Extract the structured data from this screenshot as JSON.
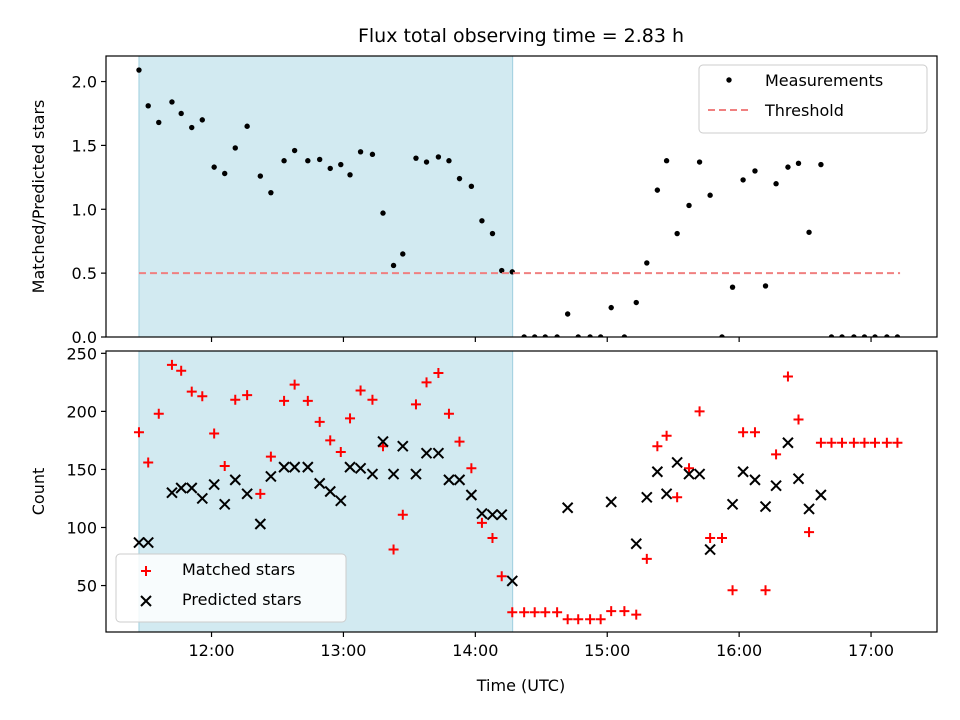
{
  "chart_data": {
    "title": "Flux total observing time = 2.83 h",
    "xlabel": "Time (UTC)",
    "x_ticks": [
      "12:00",
      "13:00",
      "14:00",
      "15:00",
      "16:00",
      "17:00"
    ],
    "x_tick_hours": [
      12,
      13,
      14,
      15,
      16,
      17
    ],
    "x_range_hours": [
      11.2,
      17.5
    ],
    "shaded_interval_hours": [
      11.45,
      14.283
    ],
    "colors": {
      "shade": "#add8e6",
      "threshold": "#f08080",
      "matched": "#ff0000",
      "predicted": "#000000",
      "measurement": "#000000"
    },
    "panels": [
      {
        "type": "scatter",
        "ylabel": "Matched/Predicted stars",
        "ylim": [
          0,
          2.2
        ],
        "y_ticks": [
          "0.0",
          "0.5",
          "1.0",
          "1.5",
          "2.0"
        ],
        "y_tick_values": [
          0,
          0.5,
          1.0,
          1.5,
          2.0
        ],
        "legend_position": "top-right",
        "series": [
          {
            "name": "Measurements",
            "marker": "dot",
            "x": [
              11.45,
              11.52,
              11.6,
              11.7,
              11.77,
              11.85,
              11.93,
              12.02,
              12.1,
              12.18,
              12.27,
              12.37,
              12.45,
              12.55,
              12.63,
              12.73,
              12.82,
              12.9,
              12.98,
              13.05,
              13.13,
              13.22,
              13.3,
              13.38,
              13.45,
              13.55,
              13.63,
              13.72,
              13.8,
              13.88,
              13.97,
              14.05,
              14.13,
              14.2,
              14.28,
              14.37,
              14.45,
              14.53,
              14.62,
              14.7,
              14.78,
              14.87,
              14.95,
              15.03,
              15.13,
              15.22,
              15.3,
              15.38,
              15.45,
              15.53,
              15.62,
              15.7,
              15.78,
              15.87,
              15.95,
              16.03,
              16.12,
              16.2,
              16.28,
              16.37,
              16.45,
              16.53,
              16.62,
              16.7,
              16.78,
              16.87,
              16.95,
              17.03,
              17.12,
              17.2
            ],
            "y": [
              2.09,
              1.81,
              1.68,
              1.84,
              1.75,
              1.64,
              1.7,
              1.33,
              1.28,
              1.48,
              1.65,
              1.26,
              1.13,
              1.38,
              1.46,
              1.38,
              1.39,
              1.32,
              1.35,
              1.27,
              1.45,
              1.43,
              0.97,
              0.56,
              0.65,
              1.4,
              1.37,
              1.41,
              1.38,
              1.24,
              1.18,
              0.91,
              0.81,
              0.52,
              0.51,
              0.0,
              0.0,
              0.0,
              0.0,
              0.18,
              0.0,
              0.0,
              0.0,
              0.23,
              0.0,
              0.27,
              0.58,
              1.15,
              1.38,
              0.81,
              1.03,
              1.37,
              1.11,
              0.0,
              0.39,
              1.23,
              1.3,
              0.4,
              1.2,
              1.33,
              1.36,
              0.82,
              1.35,
              0.0,
              0.0,
              0.0,
              0.0,
              0.0,
              0.0,
              0.0
            ]
          },
          {
            "name": "Threshold",
            "marker": "dashed-line",
            "x": [
              11.45,
              17.22
            ],
            "y": [
              0.5,
              0.5
            ]
          }
        ]
      },
      {
        "type": "scatter",
        "ylabel": "Count",
        "ylim": [
          10,
          252
        ],
        "y_ticks": [
          "50",
          "100",
          "150",
          "200",
          "250"
        ],
        "y_tick_values": [
          50,
          100,
          150,
          200,
          250
        ],
        "legend_position": "bottom-left",
        "series": [
          {
            "name": "Matched stars",
            "marker": "plus",
            "x": [
              11.45,
              11.52,
              11.6,
              11.7,
              11.77,
              11.85,
              11.93,
              12.02,
              12.1,
              12.18,
              12.27,
              12.37,
              12.45,
              12.55,
              12.63,
              12.73,
              12.82,
              12.9,
              12.98,
              13.05,
              13.13,
              13.22,
              13.3,
              13.38,
              13.45,
              13.55,
              13.63,
              13.72,
              13.8,
              13.88,
              13.97,
              14.05,
              14.13,
              14.2,
              14.28,
              14.37,
              14.45,
              14.53,
              14.62,
              14.7,
              14.78,
              14.87,
              14.95,
              15.03,
              15.13,
              15.22,
              15.3,
              15.38,
              15.45,
              15.53,
              15.62,
              15.7,
              15.78,
              15.87,
              15.95,
              16.03,
              16.12,
              16.2,
              16.28,
              16.37,
              16.45,
              16.53,
              16.62,
              16.7,
              16.78,
              16.87,
              16.95,
              17.03,
              17.12,
              17.2
            ],
            "y": [
              182,
              156,
              198,
              240,
              235,
              217,
              213,
              181,
              153,
              210,
              214,
              129,
              161,
              209,
              223,
              209,
              191,
              175,
              165,
              194,
              218,
              210,
              170,
              81,
              111,
              206,
              225,
              233,
              198,
              174,
              151,
              104,
              91,
              58,
              27,
              27,
              27,
              27,
              27,
              21,
              21,
              21,
              21,
              28,
              28,
              25,
              73,
              170,
              179,
              126,
              151,
              200,
              91,
              91,
              46,
              182,
              182,
              46,
              163,
              230,
              193,
              96,
              173,
              173,
              173,
              173,
              173,
              173,
              173,
              173
            ]
          },
          {
            "name": "Predicted stars",
            "marker": "x",
            "x": [
              11.45,
              11.52,
              11.7,
              11.77,
              11.85,
              11.93,
              12.02,
              12.1,
              12.18,
              12.27,
              12.37,
              12.45,
              12.55,
              12.63,
              12.73,
              12.82,
              12.9,
              12.98,
              13.05,
              13.13,
              13.22,
              13.3,
              13.38,
              13.45,
              13.55,
              13.63,
              13.72,
              13.8,
              13.88,
              13.97,
              14.05,
              14.13,
              14.2,
              14.28,
              14.7,
              15.03,
              15.22,
              15.3,
              15.38,
              15.45,
              15.53,
              15.62,
              15.7,
              15.78,
              15.95,
              16.03,
              16.12,
              16.2,
              16.28,
              16.37,
              16.45,
              16.53,
              16.62
            ],
            "y": [
              87,
              87,
              130,
              134,
              134,
              125,
              137,
              120,
              141,
              129,
              103,
              144,
              152,
              152,
              152,
              138,
              131,
              123,
              152,
              151,
              146,
              174,
              146,
              170,
              146,
              164,
              164,
              141,
              141,
              128,
              112,
              111,
              111,
              54,
              117,
              122,
              86,
              126,
              148,
              129,
              156,
              146,
              146,
              81,
              120,
              148,
              141,
              118,
              136,
              173,
              142,
              116,
              128
            ]
          }
        ]
      }
    ]
  }
}
